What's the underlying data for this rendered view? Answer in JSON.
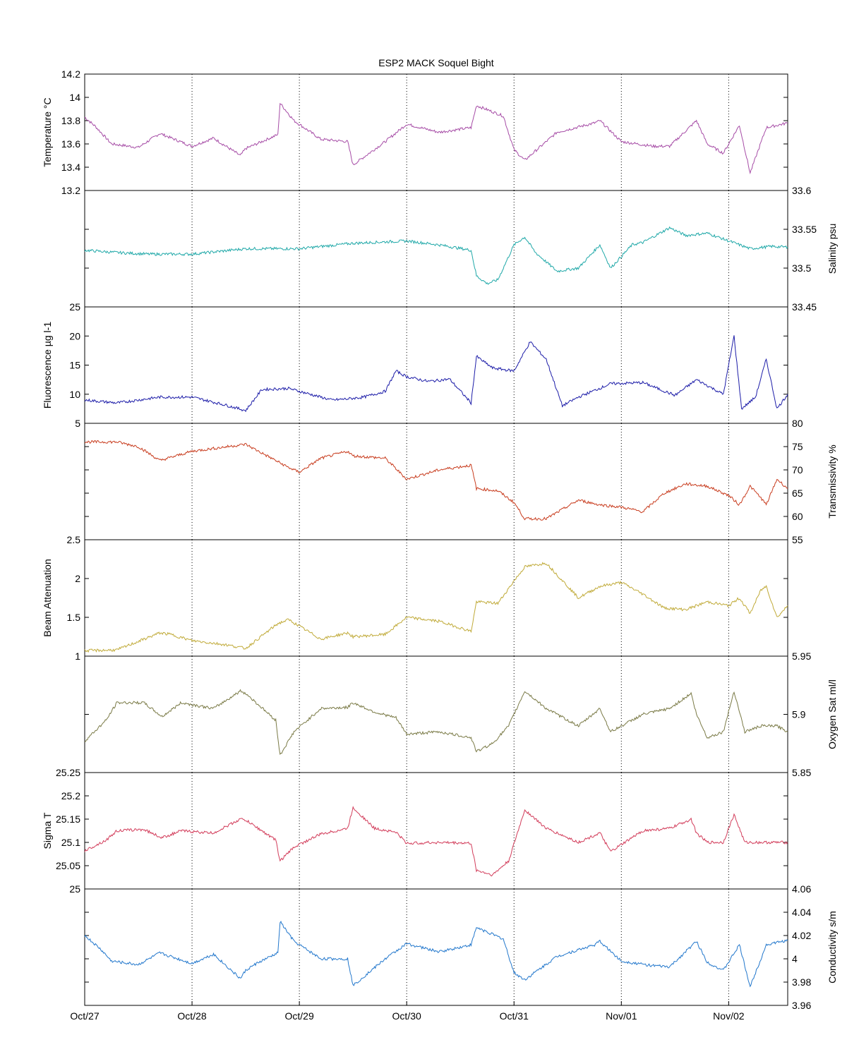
{
  "chart_data": {
    "type": "line",
    "title": "ESP2 MACK  Soquel Bight",
    "x_ticks": [
      "Oct/27",
      "Oct/28",
      "Oct/29",
      "Oct/30",
      "Oct/31",
      "Nov/01",
      "Nov/02"
    ],
    "x_range": [
      0,
      6.55
    ],
    "grid": "vertical dotted at day ticks",
    "panels": [
      {
        "ylabel": "Temperature °C",
        "axis_side": "left",
        "color": "#a64ca6",
        "ylim": [
          13.2,
          14.2
        ],
        "ticks": [
          13.2,
          13.4,
          13.6,
          13.8,
          14,
          14.2
        ],
        "x": [
          0,
          0.1,
          0.25,
          0.5,
          0.7,
          1.0,
          1.2,
          1.45,
          1.5,
          1.6,
          1.8,
          1.82,
          1.95,
          2.2,
          2.45,
          2.5,
          2.8,
          3.0,
          3.3,
          3.6,
          3.65,
          3.9,
          4.0,
          4.1,
          4.4,
          4.75,
          4.8,
          5.0,
          5.3,
          5.45,
          5.7,
          5.8,
          5.95,
          6.1,
          6.2,
          6.35,
          6.55
        ],
        "y": [
          13.83,
          13.75,
          13.6,
          13.57,
          13.69,
          13.58,
          13.65,
          13.5,
          13.56,
          13.6,
          13.68,
          13.95,
          13.8,
          13.64,
          13.62,
          13.42,
          13.62,
          13.77,
          13.7,
          13.74,
          13.93,
          13.84,
          13.55,
          13.46,
          13.7,
          13.78,
          13.8,
          13.62,
          13.58,
          13.58,
          13.8,
          13.6,
          13.52,
          13.76,
          13.35,
          13.74,
          13.78
        ]
      },
      {
        "ylabel": "Salinity psu",
        "axis_side": "right",
        "color": "#1fa8a8",
        "ylim": [
          33.45,
          33.6
        ],
        "ticks": [
          33.45,
          33.5,
          33.55,
          33.6
        ],
        "x": [
          0,
          0.3,
          0.6,
          1.0,
          1.5,
          2.0,
          2.5,
          3.0,
          3.3,
          3.6,
          3.65,
          3.75,
          3.85,
          4.0,
          4.1,
          4.2,
          4.4,
          4.6,
          4.8,
          4.9,
          5.1,
          5.2,
          5.45,
          5.6,
          5.8,
          6.0,
          6.2,
          6.4,
          6.55
        ],
        "y": [
          33.523,
          33.52,
          33.518,
          33.518,
          33.525,
          33.525,
          33.532,
          33.535,
          33.53,
          33.523,
          33.49,
          33.48,
          33.485,
          33.53,
          33.54,
          33.52,
          33.496,
          33.5,
          33.53,
          33.5,
          33.53,
          33.533,
          33.552,
          33.542,
          33.545,
          33.535,
          33.525,
          33.528,
          33.527
        ]
      },
      {
        "ylabel": "Fluorescence µg l-1",
        "axis_side": "left",
        "color": "#1c1ca8",
        "ylim": [
          5,
          25
        ],
        "ticks": [
          5,
          10,
          15,
          20,
          25
        ],
        "x": [
          0,
          0.3,
          0.7,
          1.0,
          1.3,
          1.5,
          1.65,
          1.9,
          2.0,
          2.3,
          2.45,
          2.6,
          2.8,
          2.9,
          3.0,
          3.2,
          3.4,
          3.6,
          3.65,
          3.8,
          4.0,
          4.15,
          4.3,
          4.45,
          4.6,
          4.9,
          5.2,
          5.5,
          5.7,
          5.95,
          6.05,
          6.12,
          6.25,
          6.35,
          6.45,
          6.55
        ],
        "y": [
          9,
          8.5,
          9.5,
          9.5,
          8.2,
          7.2,
          10.8,
          11,
          10.5,
          9,
          9.2,
          9.5,
          10.5,
          14,
          13,
          12.2,
          12.6,
          8.5,
          16.5,
          14.5,
          14,
          19,
          16,
          8,
          9.5,
          11.8,
          12,
          9.8,
          12.5,
          10,
          20,
          7.5,
          9.5,
          16,
          7.5,
          10
        ]
      },
      {
        "ylabel": "Transmissivity %",
        "axis_side": "right",
        "color": "#c83c1e",
        "ylim": [
          55,
          80
        ],
        "ticks": [
          55,
          60,
          65,
          70,
          75,
          80
        ],
        "x": [
          0,
          0.3,
          0.5,
          0.7,
          1.0,
          1.5,
          1.9,
          2.0,
          2.2,
          2.45,
          2.5,
          2.8,
          3.0,
          3.3,
          3.6,
          3.65,
          3.85,
          4.0,
          4.1,
          4.3,
          4.6,
          4.8,
          5.0,
          5.2,
          5.4,
          5.6,
          5.8,
          6.0,
          6.1,
          6.2,
          6.3,
          6.35,
          6.45,
          6.55
        ],
        "y": [
          76,
          76,
          75,
          72,
          74,
          75.5,
          70.5,
          69.5,
          72.5,
          74,
          73,
          72.5,
          68,
          70,
          71,
          66,
          65.5,
          63,
          59.5,
          59.5,
          63.5,
          62.5,
          62,
          61,
          65,
          67,
          66.5,
          64.5,
          62.5,
          66.5,
          64,
          62.5,
          68,
          66
        ]
      },
      {
        "ylabel": "Beam Attenuation",
        "axis_side": "left",
        "color": "#c0aa38",
        "ylim": [
          1,
          2.5
        ],
        "ticks": [
          1,
          1.5,
          2,
          2.5
        ],
        "x": [
          0,
          0.3,
          0.7,
          0.8,
          1.0,
          1.3,
          1.5,
          1.8,
          1.9,
          2.2,
          2.45,
          2.5,
          2.8,
          3.0,
          3.3,
          3.6,
          3.65,
          3.85,
          4.0,
          4.1,
          4.3,
          4.6,
          4.8,
          5.0,
          5.2,
          5.4,
          5.6,
          5.8,
          6.0,
          6.1,
          6.2,
          6.3,
          6.35,
          6.45,
          6.55
        ],
        "y": [
          1.07,
          1.08,
          1.3,
          1.28,
          1.2,
          1.15,
          1.1,
          1.42,
          1.47,
          1.22,
          1.3,
          1.25,
          1.28,
          1.5,
          1.45,
          1.32,
          1.7,
          1.68,
          1.97,
          2.15,
          2.2,
          1.75,
          1.9,
          1.95,
          1.8,
          1.62,
          1.6,
          1.7,
          1.65,
          1.75,
          1.55,
          1.85,
          1.9,
          1.5,
          1.65
        ]
      },
      {
        "ylabel": "Oxygen Sat ml/l",
        "axis_side": "right",
        "color": "#7a7a46",
        "ylim": [
          5.85,
          5.95
        ],
        "ticks": [
          5.85,
          5.9,
          5.95
        ],
        "x": [
          0,
          0.2,
          0.3,
          0.55,
          0.72,
          0.9,
          1.2,
          1.45,
          1.5,
          1.78,
          1.82,
          1.95,
          2.2,
          2.45,
          2.5,
          2.7,
          2.9,
          3.0,
          3.3,
          3.6,
          3.65,
          3.8,
          3.95,
          4.1,
          4.3,
          4.6,
          4.8,
          4.9,
          5.2,
          5.45,
          5.65,
          5.7,
          5.8,
          5.95,
          6.05,
          6.15,
          6.3,
          6.45,
          6.55
        ],
        "y": [
          5.877,
          5.895,
          5.91,
          5.91,
          5.898,
          5.91,
          5.905,
          5.92,
          5.918,
          5.895,
          5.865,
          5.885,
          5.905,
          5.906,
          5.91,
          5.902,
          5.897,
          5.883,
          5.885,
          5.88,
          5.868,
          5.875,
          5.89,
          5.92,
          5.905,
          5.89,
          5.905,
          5.885,
          5.9,
          5.905,
          5.918,
          5.9,
          5.88,
          5.885,
          5.92,
          5.885,
          5.89,
          5.89,
          5.885
        ]
      },
      {
        "ylabel": "Sigma T",
        "axis_side": "left",
        "color": "#d23c5a",
        "ylim": [
          25,
          25.25
        ],
        "ticks": [
          25,
          25.05,
          25.1,
          25.15,
          25.2,
          25.25
        ],
        "x": [
          0,
          0.2,
          0.3,
          0.55,
          0.72,
          0.9,
          1.2,
          1.45,
          1.5,
          1.78,
          1.82,
          1.95,
          2.2,
          2.45,
          2.5,
          2.7,
          2.9,
          3.0,
          3.3,
          3.6,
          3.65,
          3.8,
          3.95,
          4.1,
          4.3,
          4.6,
          4.8,
          4.9,
          5.2,
          5.45,
          5.65,
          5.7,
          5.8,
          5.95,
          6.05,
          6.15,
          6.3,
          6.45,
          6.55
        ],
        "y": [
          25.082,
          25.105,
          25.125,
          25.128,
          25.11,
          25.125,
          25.12,
          25.15,
          25.148,
          25.105,
          25.06,
          25.09,
          25.118,
          25.13,
          25.175,
          25.13,
          25.122,
          25.098,
          25.1,
          25.098,
          25.04,
          25.03,
          25.06,
          25.17,
          25.13,
          25.1,
          25.12,
          25.08,
          25.125,
          25.13,
          25.15,
          25.12,
          25.1,
          25.1,
          25.16,
          25.1,
          25.1,
          25.1,
          25.1
        ]
      },
      {
        "ylabel": "Conductivity s/m",
        "axis_side": "right",
        "color": "#2277cc",
        "ylim": [
          3.96,
          4.06
        ],
        "ticks": [
          3.96,
          3.98,
          4.0,
          4.02,
          4.04,
          4.06
        ],
        "x": [
          0,
          0.15,
          0.25,
          0.5,
          0.7,
          1.0,
          1.2,
          1.45,
          1.5,
          1.6,
          1.8,
          1.82,
          1.95,
          2.2,
          2.45,
          2.5,
          2.8,
          3.0,
          3.3,
          3.6,
          3.65,
          3.9,
          4.0,
          4.1,
          4.4,
          4.75,
          4.8,
          5.0,
          5.3,
          5.45,
          5.7,
          5.8,
          5.95,
          6.1,
          6.2,
          6.35,
          6.55
        ],
        "y": [
          4.02,
          4.008,
          3.998,
          3.995,
          4.005,
          3.996,
          4.004,
          3.983,
          3.99,
          3.996,
          4.005,
          4.032,
          4.015,
          4.0,
          4.0,
          3.977,
          4.0,
          4.013,
          4.006,
          4.012,
          4.027,
          4.017,
          3.988,
          3.982,
          4.002,
          4.012,
          4.015,
          3.998,
          3.994,
          3.993,
          4.015,
          3.997,
          3.99,
          4.012,
          3.976,
          4.012,
          4.016
        ]
      }
    ]
  }
}
